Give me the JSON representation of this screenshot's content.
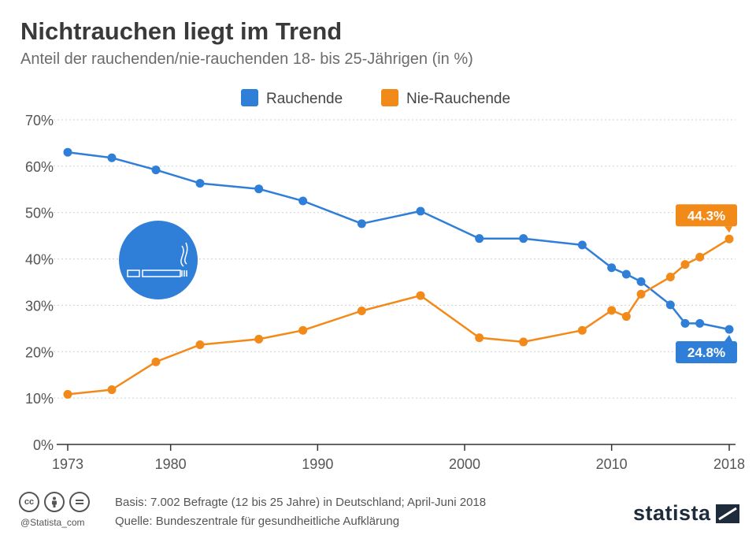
{
  "header": {
    "title": "Nichtrauchen liegt im Trend",
    "subtitle": "Anteil der rauchenden/nie-rauchenden 18- bis 25-Jährigen (in %)"
  },
  "chart_data": {
    "type": "line",
    "title": "Nichtrauchen liegt im Trend",
    "subtitle": "Anteil der rauchenden/nie-rauchenden 18- bis 25-Jährigen (in %)",
    "xlabel": "",
    "ylabel": "",
    "x_ticks": [
      1973,
      1980,
      1990,
      2000,
      2010,
      2018
    ],
    "x_range": [
      1973,
      2018
    ],
    "y_ticks": [
      "0%",
      "10%",
      "20%",
      "30%",
      "40%",
      "50%",
      "60%",
      "70%"
    ],
    "ylim": [
      0,
      70
    ],
    "grid": true,
    "legend_position": "top-center",
    "series": [
      {
        "name": "Rauchende",
        "color": "#2f7ed8",
        "x": [
          1973,
          1976,
          1979,
          1982,
          1986,
          1989,
          1993,
          1997,
          2001,
          2004,
          2008,
          2010,
          2011,
          2012,
          2014,
          2015,
          2016,
          2018
        ],
        "values": [
          63,
          61.8,
          59.2,
          56.3,
          55.1,
          52.5,
          47.6,
          50.3,
          44.4,
          44.4,
          43,
          38.1,
          36.7,
          35.1,
          30.1,
          26.1,
          26.1,
          24.8
        ],
        "end_label": "24.8%"
      },
      {
        "name": "Nie-Rauchende",
        "color": "#f28a1a",
        "x": [
          1973,
          1976,
          1979,
          1982,
          1986,
          1989,
          1993,
          1997,
          2001,
          2004,
          2008,
          2010,
          2011,
          2012,
          2014,
          2015,
          2016,
          2018
        ],
        "values": [
          10.8,
          11.8,
          17.8,
          21.5,
          22.7,
          24.6,
          28.8,
          32.1,
          23,
          22.1,
          24.6,
          28.9,
          27.6,
          32.4,
          36.1,
          38.8,
          40.4,
          44.3
        ],
        "end_label": "44.3%"
      }
    ]
  },
  "footer": {
    "basis": "Basis: 7.002 Befragte (12 bis 25 Jahre) in Deutschland; April-Juni 2018",
    "source": "Quelle: Bundeszentrale für gesundheitliche Aufklärung",
    "handle": "@Statista_com",
    "brand": "statista",
    "cc_icons": [
      "cc",
      "by",
      "nd"
    ]
  }
}
